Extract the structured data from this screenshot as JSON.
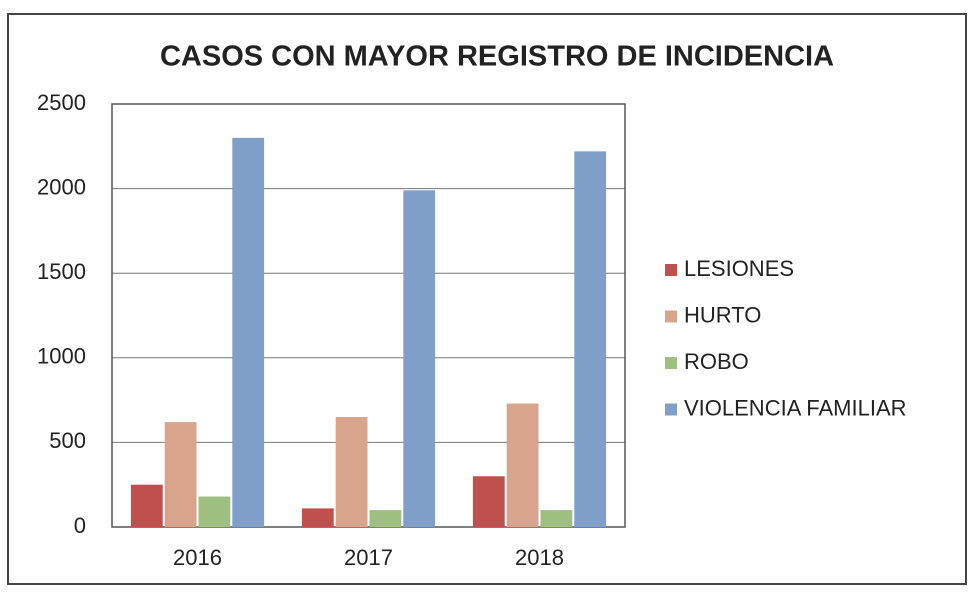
{
  "chart_data": {
    "type": "bar",
    "title": "CASOS CON MAYOR REGISTRO DE INCIDENCIA",
    "categories": [
      "2016",
      "2017",
      "2018"
    ],
    "series": [
      {
        "name": "LESIONES",
        "color": "#c0504d",
        "values": [
          250,
          110,
          300
        ]
      },
      {
        "name": "HURTO",
        "color": "#d8a48c",
        "values": [
          620,
          650,
          730
        ]
      },
      {
        "name": "ROBO",
        "color": "#9fbf80",
        "values": [
          180,
          100,
          100
        ]
      },
      {
        "name": "VIOLENCIA FAMILIAR",
        "color": "#7f9fc9",
        "values": [
          2300,
          1990,
          2220
        ]
      }
    ],
    "ylim": [
      0,
      2500
    ],
    "yticks": [
      0,
      500,
      1000,
      1500,
      2000,
      2500
    ],
    "grid": true,
    "legend": "right"
  }
}
